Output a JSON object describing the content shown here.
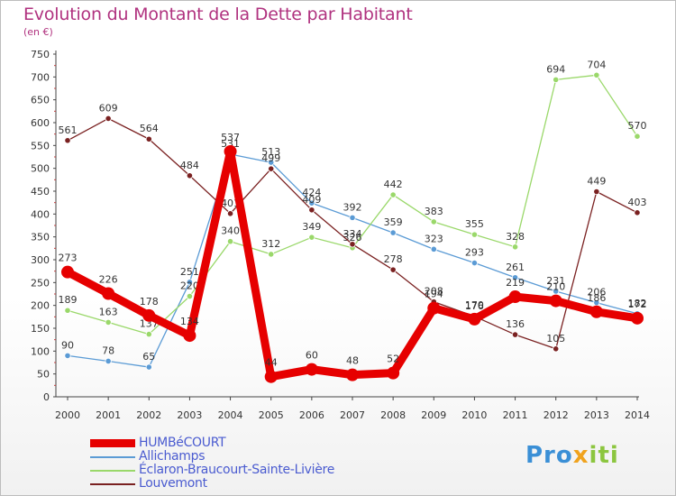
{
  "title": "Evolution du Montant de la Dette par Habitant",
  "unit": "(en €)",
  "logo": {
    "text": "Proxiti",
    "colors": [
      "#3a8fd6",
      "#f0a31e",
      "#8cc63f"
    ]
  },
  "chart_data": {
    "type": "line",
    "x": [
      2000,
      2001,
      2002,
      2003,
      2004,
      2005,
      2006,
      2007,
      2008,
      2009,
      2010,
      2011,
      2012,
      2013,
      2014
    ],
    "ylim": [
      0,
      750
    ],
    "yticks": [
      0,
      50,
      100,
      150,
      200,
      250,
      300,
      350,
      400,
      450,
      500,
      550,
      600,
      650,
      700,
      750
    ],
    "grid": false,
    "legend_position": "bottom-left",
    "series": [
      {
        "name": "HUMBéCOURT",
        "color": "#e60000",
        "values": [
          273,
          226,
          178,
          134,
          537,
          44,
          60,
          48,
          52,
          194,
          170,
          219,
          210,
          186,
          172
        ]
      },
      {
        "name": "Allichamps",
        "color": "#5b9bd5",
        "values": [
          90,
          78,
          65,
          251,
          531,
          513,
          424,
          392,
          359,
          323,
          293,
          261,
          231,
          206,
          182
        ]
      },
      {
        "name": "Éclaron-Braucourt-Sainte-Livière",
        "color": "#9ad86a",
        "values": [
          189,
          163,
          137,
          220,
          340,
          312,
          349,
          326,
          442,
          383,
          355,
          328,
          694,
          704,
          570
        ]
      },
      {
        "name": "Louvemont",
        "color": "#7a2121",
        "values": [
          561,
          609,
          564,
          484,
          401,
          499,
          409,
          334,
          278,
          208,
          176,
          136,
          105,
          449,
          403
        ]
      }
    ]
  }
}
